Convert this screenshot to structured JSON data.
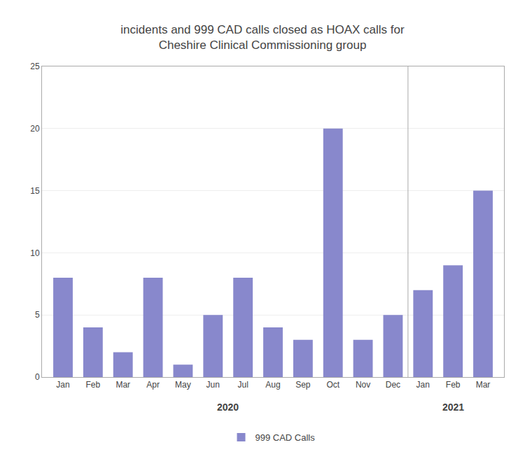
{
  "chart_data": {
    "type": "bar",
    "title": "incidents and 999 CAD calls closed as HOAX calls for\nCheshire Clinical Commissioning group",
    "categories": [
      "Jan",
      "Feb",
      "Mar",
      "Apr",
      "May",
      "Jun",
      "Jul",
      "Aug",
      "Sep",
      "Oct",
      "Nov",
      "Dec",
      "Jan",
      "Feb",
      "Mar"
    ],
    "series": [
      {
        "name": "999 CAD Calls",
        "color": "#8888cc",
        "values": [
          8,
          4,
          2,
          8,
          1,
          5,
          8,
          4,
          3,
          20,
          3,
          5,
          7,
          9,
          15
        ]
      }
    ],
    "annotations": [
      "2020",
      "2021"
    ],
    "ylim": [
      0,
      25
    ],
    "yticks": [
      0,
      5,
      10,
      15,
      20,
      25
    ],
    "grid": true,
    "legend": "bottom"
  }
}
